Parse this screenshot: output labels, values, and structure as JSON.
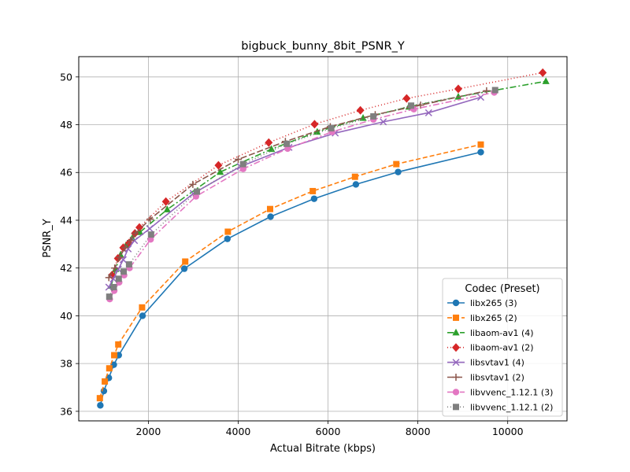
{
  "chart_data": {
    "type": "line",
    "title": "bigbuck_bunny_8bit_PSNR_Y",
    "xlabel": "Actual Bitrate (kbps)",
    "ylabel": "PSNR_Y",
    "xlim": [
      450,
      11320
    ],
    "ylim": [
      35.6,
      50.85
    ],
    "xticks": [
      2000,
      4000,
      6000,
      8000,
      10000
    ],
    "yticks": [
      36,
      38,
      40,
      42,
      44,
      46,
      48,
      50
    ],
    "grid": true,
    "legend": {
      "title": "Codec (Preset)",
      "placement": "lower-right"
    },
    "series": [
      {
        "name": "libx265 (3)",
        "color": "#1f77b4",
        "dash": "",
        "marker": "circle",
        "x": [
          930,
          1010,
          1120,
          1230,
          1340,
          1870,
          2800,
          3760,
          4720,
          5690,
          6620,
          7560,
          9400
        ],
        "y": [
          36.25,
          36.85,
          37.4,
          37.95,
          38.35,
          40.0,
          41.97,
          43.22,
          44.15,
          44.9,
          45.5,
          46.02,
          46.85
        ]
      },
      {
        "name": "libx265 (2)",
        "color": "#ff7f0e",
        "dash": "6,3",
        "marker": "square",
        "x": [
          920,
          1030,
          1130,
          1240,
          1330,
          1860,
          2820,
          3770,
          4710,
          5660,
          6600,
          7520,
          9400
        ],
        "y": [
          36.55,
          37.25,
          37.8,
          38.35,
          38.8,
          40.35,
          42.27,
          43.52,
          44.47,
          45.22,
          45.82,
          46.35,
          47.17
        ]
      },
      {
        "name": "libaom-av1 (4)",
        "color": "#2ca02c",
        "dash": "8,3,2,3",
        "marker": "triangle",
        "x": [
          1170,
          1270,
          1380,
          1500,
          1640,
          1810,
          2420,
          3600,
          4740,
          5760,
          6780,
          7800,
          8900,
          10850
        ],
        "y": [
          41.25,
          41.95,
          42.55,
          42.95,
          43.25,
          43.5,
          44.45,
          46.02,
          46.98,
          47.7,
          48.28,
          48.75,
          49.17,
          49.82
        ]
      },
      {
        "name": "libaom-av1 (2)",
        "color": "#d62728",
        "dash": "1,3",
        "marker": "diamond",
        "x": [
          1190,
          1320,
          1440,
          1570,
          1700,
          1800,
          2390,
          3560,
          4680,
          5700,
          6720,
          7750,
          8900,
          10780
        ],
        "y": [
          41.7,
          42.4,
          42.85,
          43.05,
          43.45,
          43.7,
          44.78,
          46.3,
          47.25,
          48.02,
          48.6,
          49.1,
          49.5,
          50.18
        ]
      },
      {
        "name": "libsvtav1 (4)",
        "color": "#9467bd",
        "dash": "",
        "marker": "x",
        "x": [
          1120,
          1220,
          1330,
          1440,
          1550,
          1690,
          2030,
          3000,
          4050,
          5130,
          6160,
          7230,
          8240,
          9400
        ],
        "y": [
          41.2,
          41.55,
          41.95,
          42.35,
          42.8,
          43.15,
          43.65,
          45.12,
          46.25,
          47.05,
          47.65,
          48.12,
          48.5,
          49.15
        ]
      },
      {
        "name": "libsvtav1 (2)",
        "color": "#8c564b",
        "dash": "8,3",
        "marker": "plus",
        "x": [
          1120,
          1250,
          1360,
          1480,
          1600,
          1710,
          2040,
          2990,
          4000,
          5050,
          6050,
          7050,
          8060,
          9530
        ],
        "y": [
          41.6,
          42.0,
          42.45,
          42.85,
          43.15,
          43.45,
          44.05,
          45.5,
          46.55,
          47.3,
          47.92,
          48.42,
          48.82,
          49.42
        ]
      },
      {
        "name": "libvvenc_1.12.1 (3)",
        "color": "#e377c2",
        "dash": "8,3,2,3",
        "marker": "circle",
        "x": [
          1140,
          1240,
          1350,
          1460,
          1580,
          2050,
          3060,
          4110,
          5100,
          6090,
          7010,
          7910,
          9700
        ],
        "y": [
          40.7,
          41.05,
          41.4,
          41.7,
          42.0,
          43.2,
          45.0,
          46.15,
          47.0,
          47.7,
          48.22,
          48.65,
          49.35
        ]
      },
      {
        "name": "libvvenc_1.12.1 (2)",
        "color": "#7f7f7f",
        "dash": "1,3",
        "marker": "square",
        "x": [
          1130,
          1230,
          1340,
          1450,
          1570,
          2060,
          3080,
          4110,
          5080,
          6070,
          7010,
          7850,
          9720
        ],
        "y": [
          40.8,
          41.2,
          41.55,
          41.85,
          42.15,
          43.4,
          45.2,
          46.35,
          47.2,
          47.85,
          48.35,
          48.8,
          49.45
        ]
      }
    ]
  }
}
